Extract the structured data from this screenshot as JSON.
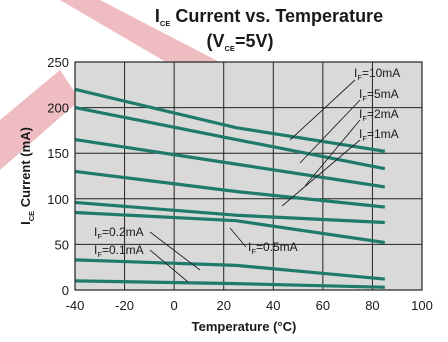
{
  "chart_data": {
    "type": "line",
    "title": {
      "line1": {
        "main": "I",
        "sub": "CE",
        "rest": " Current vs. Temperature"
      },
      "line2": {
        "open": "(V",
        "sub": "CE",
        "rest": "=5V)"
      }
    },
    "xlabel": "Temperature (°C)",
    "ylabel": {
      "main": "I",
      "sub": "CE",
      "rest": " Current (mA)"
    },
    "xlim": [
      -40,
      100
    ],
    "ylim": [
      0,
      250
    ],
    "xticks": [
      -40,
      -20,
      0,
      20,
      40,
      60,
      80,
      100
    ],
    "yticks": [
      0,
      50,
      100,
      150,
      200,
      250
    ],
    "grid": true,
    "colors": {
      "series": "#1f7a6b",
      "grid": "#222222",
      "plot_background": "#d9d9d9",
      "watermark": "#e8a0a8"
    },
    "series": [
      {
        "x": [
          -40,
          25,
          85
        ],
        "values": [
          220,
          178,
          152
        ]
      },
      {
        "x": [
          -40,
          25,
          85
        ],
        "values": [
          200,
          165,
          133
        ]
      },
      {
        "x": [
          -40,
          25,
          85
        ],
        "values": [
          165,
          138,
          113
        ]
      },
      {
        "x": [
          -40,
          25,
          85
        ],
        "values": [
          130,
          108,
          91
        ]
      },
      {
        "x": [
          -40,
          25,
          85
        ],
        "values": [
          96,
          82,
          74
        ]
      },
      {
        "x": [
          -40,
          25,
          85
        ],
        "values": [
          85,
          76,
          52
        ]
      },
      {
        "x": [
          -40,
          25,
          85
        ],
        "values": [
          33,
          27,
          12
        ]
      },
      {
        "x": [
          -40,
          25,
          85
        ],
        "values": [
          10,
          7,
          3
        ]
      }
    ],
    "annotations": [
      {
        "pre": "I",
        "sub": "F",
        "post": "=10mA"
      },
      {
        "pre": "I",
        "sub": "F",
        "post": "=5mA"
      },
      {
        "pre": "I",
        "sub": "F",
        "post": "=2mA"
      },
      {
        "pre": "I",
        "sub": "F",
        "post": "=1mA"
      },
      {
        "pre": "I",
        "sub": "F",
        "post": "=0.2mA"
      },
      {
        "pre": "I",
        "sub": "F",
        "post": "=0.1mA"
      },
      {
        "pre": "I",
        "sub": "F",
        "post": "=0.5mA"
      }
    ]
  }
}
